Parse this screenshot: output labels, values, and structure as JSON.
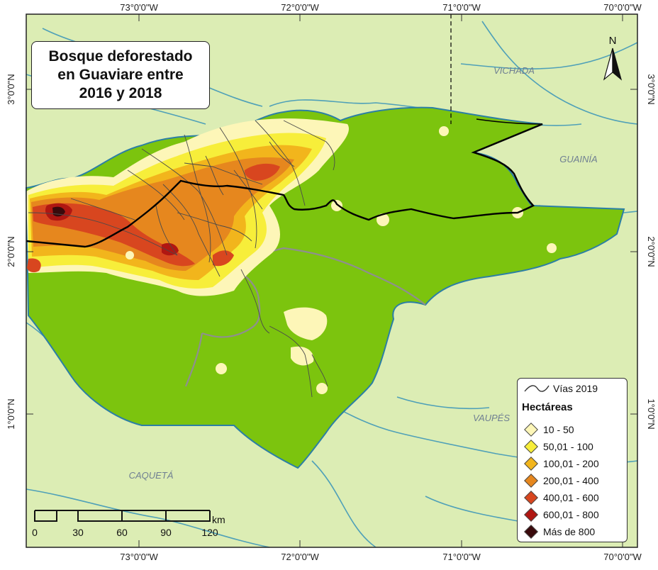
{
  "title": {
    "line1": "Bosque deforestado",
    "line2": "en Guaviare entre",
    "line3": "2016 y 2018"
  },
  "longitude_labels": [
    "73°0'0\"W",
    "72°0'0\"W",
    "71°0'0\"W",
    "70°0'0\"W"
  ],
  "latitude_labels": [
    "3°0'0\"N",
    "2°0'0\"N",
    "1°0'0\"N"
  ],
  "regions": {
    "vichada": "VICHADA",
    "guainia": "GUAINÍA",
    "vaupes": "VAUPÉS",
    "caqueta": "CAQUETÁ"
  },
  "north_arrow": {
    "label": "N"
  },
  "scale_bar": {
    "unit": "km",
    "ticks": [
      "0",
      "30",
      "60",
      "90",
      "120"
    ]
  },
  "legend": {
    "roads_label": "Vías 2019",
    "heading": "Hectáreas",
    "classes": [
      {
        "label": "10 - 50",
        "color": "#fdf6b8"
      },
      {
        "label": "50,01 - 100",
        "color": "#f7ee3a"
      },
      {
        "label": "100,01 - 200",
        "color": "#f2b51c"
      },
      {
        "label": "200,01 - 400",
        "color": "#e6871e"
      },
      {
        "label": "400,01 - 600",
        "color": "#d8461f"
      },
      {
        "label": "600,01 - 800",
        "color": "#b01712"
      },
      {
        "label": "Más de 800",
        "color": "#3a0a0c"
      }
    ]
  },
  "colors": {
    "background_land": "#dcedb4",
    "guaviare_forest": "#7cc40e",
    "rivers": "#4fa0b8",
    "roads": "#4a4a4a",
    "boundary": "#000000"
  }
}
